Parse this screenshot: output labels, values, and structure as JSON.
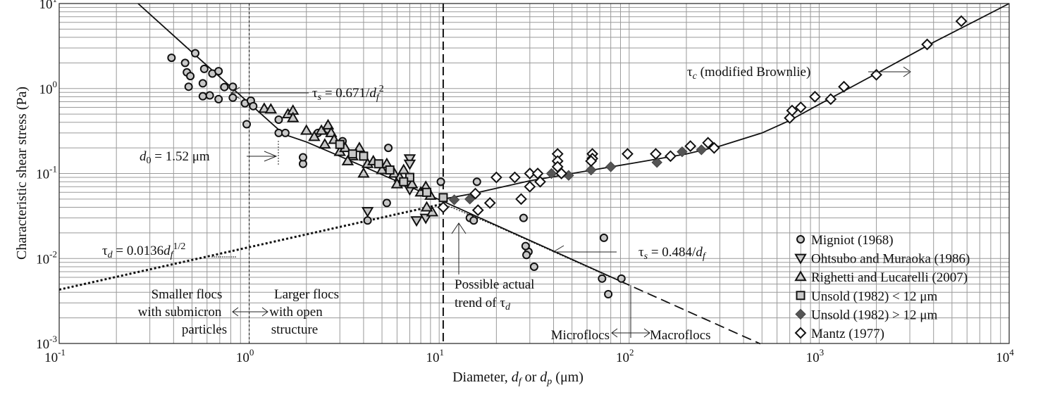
{
  "chart_data": {
    "type": "scatter",
    "title": "",
    "xlabel": {
      "pre": "Diameter, ",
      "d1": "d",
      "s1": "f",
      "mid": " or ",
      "d2": "d",
      "s2": "p",
      "post": " (μm)"
    },
    "ylabel": "Characteristic shear stress (Pa)",
    "xscale": "log",
    "yscale": "log",
    "xlim": [
      0.1,
      10000
    ],
    "ylim": [
      0.001,
      10
    ],
    "x_tick_exponents": [
      "-1",
      "0",
      "1",
      "2",
      "3",
      "4"
    ],
    "y_tick_exponents": [
      "1",
      "0",
      "-1",
      "-2",
      "-3"
    ],
    "tick_base": "10",
    "grid": true,
    "legend_position": "bottom-right",
    "series": [
      {
        "name": "Migniot (1968)",
        "marker": "circle",
        "color": "#c8c8c8",
        "points": [
          [
            0.39,
            2.3
          ],
          [
            0.46,
            2.0
          ],
          [
            0.52,
            2.6
          ],
          [
            0.47,
            1.55
          ],
          [
            0.49,
            1.4
          ],
          [
            0.58,
            1.7
          ],
          [
            0.64,
            1.5
          ],
          [
            0.57,
            1.15
          ],
          [
            0.48,
            1.05
          ],
          [
            0.69,
            1.6
          ],
          [
            0.74,
            1.04
          ],
          [
            0.82,
            1.05
          ],
          [
            0.69,
            0.75
          ],
          [
            0.62,
            0.83
          ],
          [
            0.57,
            0.81
          ],
          [
            0.82,
            0.78
          ],
          [
            0.95,
            0.67
          ],
          [
            1.02,
            0.72
          ],
          [
            1.05,
            0.62
          ],
          [
            0.97,
            0.38
          ],
          [
            1.43,
            0.43
          ],
          [
            1.43,
            0.3
          ],
          [
            1.55,
            0.3
          ],
          [
            1.92,
            0.13
          ],
          [
            1.92,
            0.155
          ],
          [
            2.3,
            0.3
          ],
          [
            2.6,
            0.33
          ],
          [
            3.1,
            0.24
          ],
          [
            4.2,
            0.028
          ],
          [
            5.3,
            0.045
          ],
          [
            5.4,
            0.2
          ],
          [
            10.2,
            0.08
          ],
          [
            15.8,
            0.08
          ],
          [
            14.5,
            0.03
          ],
          [
            15.2,
            0.028
          ],
          [
            27.8,
            0.03
          ],
          [
            29.5,
            0.012
          ],
          [
            28.8,
            0.011
          ],
          [
            28.5,
            0.014
          ],
          [
            31.6,
            0.008
          ],
          [
            73.6,
            0.0175
          ],
          [
            72,
            0.0058
          ],
          [
            77.6,
            0.0038
          ],
          [
            91,
            0.0058
          ]
        ]
      },
      {
        "name": "Ohtsubo and Muraoka (1986)",
        "marker": "triangle-down",
        "color": "#c8c8c8",
        "points": [
          [
            7.0,
            0.15
          ],
          [
            7.0,
            0.13
          ],
          [
            4.2,
            0.036
          ],
          [
            7.6,
            0.028
          ],
          [
            8.5,
            0.03
          ],
          [
            6.3,
            0.08
          ],
          [
            7.0,
            0.065
          ]
        ]
      },
      {
        "name": "Righetti and Lucarelli (2007)",
        "marker": "triangle-up",
        "color": "#c8c8c8",
        "points": [
          [
            1.2,
            0.58
          ],
          [
            1.3,
            0.57
          ],
          [
            1.6,
            0.5
          ],
          [
            1.7,
            0.55
          ],
          [
            1.7,
            0.45
          ],
          [
            2.0,
            0.32
          ],
          [
            2.4,
            0.32
          ],
          [
            2.6,
            0.37
          ],
          [
            2.7,
            0.3
          ],
          [
            2.8,
            0.25
          ],
          [
            2.2,
            0.27
          ],
          [
            2.5,
            0.22
          ],
          [
            3.0,
            0.18
          ],
          [
            3.2,
            0.2
          ],
          [
            3.5,
            0.16
          ],
          [
            3.8,
            0.2
          ],
          [
            4.2,
            0.13
          ],
          [
            4.5,
            0.14
          ],
          [
            5.0,
            0.11
          ],
          [
            5.3,
            0.13
          ],
          [
            5.8,
            0.1
          ],
          [
            6.2,
            0.09
          ],
          [
            6.5,
            0.11
          ],
          [
            7.2,
            0.075
          ],
          [
            8.0,
            0.06
          ],
          [
            8.5,
            0.07
          ],
          [
            9.0,
            0.055
          ],
          [
            9.2,
            0.035
          ],
          [
            8.6,
            0.04
          ],
          [
            3.3,
            0.14
          ],
          [
            4.0,
            0.1
          ],
          [
            6.0,
            0.075
          ]
        ]
      },
      {
        "name": "Unsold (1982) < 12 μm",
        "marker": "square",
        "color": "#c8c8c8",
        "points": [
          [
            3.0,
            0.22
          ],
          [
            3.5,
            0.17
          ],
          [
            4.0,
            0.16
          ],
          [
            4.8,
            0.13
          ],
          [
            5.5,
            0.11
          ],
          [
            7.0,
            0.09
          ],
          [
            8.6,
            0.06
          ],
          [
            10.5,
            0.052
          ],
          [
            6.5,
            0.08
          ]
        ]
      },
      {
        "name": "Unsold (1982) > 12 μm",
        "marker": "diamond-filled",
        "color": "#555555",
        "points": [
          [
            12,
            0.049
          ],
          [
            14.5,
            0.05
          ],
          [
            39,
            0.1
          ],
          [
            48,
            0.095
          ],
          [
            63,
            0.11
          ],
          [
            80,
            0.12
          ],
          [
            140,
            0.135
          ],
          [
            190,
            0.18
          ],
          [
            240,
            0.19
          ]
        ]
      },
      {
        "name": "Mantz (1977)",
        "marker": "diamond-open",
        "color": "#ffffff",
        "points": [
          [
            10.5,
            0.04
          ],
          [
            15.5,
            0.058
          ],
          [
            16,
            0.037
          ],
          [
            20,
            0.09
          ],
          [
            18.5,
            0.045
          ],
          [
            25,
            0.09
          ],
          [
            27,
            0.05
          ],
          [
            30,
            0.1
          ],
          [
            33,
            0.1
          ],
          [
            30,
            0.07
          ],
          [
            34,
            0.08
          ],
          [
            42,
            0.17
          ],
          [
            42,
            0.14
          ],
          [
            42,
            0.12
          ],
          [
            44,
            0.1
          ],
          [
            64,
            0.17
          ],
          [
            64,
            0.15
          ],
          [
            63,
            0.14
          ],
          [
            98,
            0.17
          ],
          [
            138,
            0.17
          ],
          [
            165,
            0.16
          ],
          [
            210,
            0.21
          ],
          [
            260,
            0.23
          ],
          [
            280,
            0.2
          ],
          [
            700,
            0.45
          ],
          [
            720,
            0.55
          ],
          [
            800,
            0.6
          ],
          [
            950,
            0.8
          ],
          [
            1150,
            0.75
          ],
          [
            1350,
            1.05
          ],
          [
            2000,
            1.45
          ],
          [
            3700,
            3.3
          ],
          [
            5600,
            6.2
          ]
        ]
      }
    ],
    "curves": [
      {
        "name": "tau-s-small",
        "style": "solid",
        "points": [
          [
            0.26,
            10
          ],
          [
            0.5,
            2.68
          ],
          [
            1.0,
            0.671
          ],
          [
            1.52,
            0.29
          ],
          [
            2,
            0.235
          ],
          [
            3,
            0.16
          ],
          [
            5,
            0.097
          ],
          [
            10.5,
            0.047
          ]
        ]
      },
      {
        "name": "tau-s-large",
        "style": "solid",
        "points": [
          [
            10.5,
            0.047
          ],
          [
            90,
            0.0054
          ]
        ]
      },
      {
        "name": "tau-s-extension",
        "style": "dashed",
        "points": [
          [
            90,
            0.0054
          ],
          [
            490,
            0.00099
          ]
        ]
      },
      {
        "name": "tau-c",
        "style": "solid",
        "points": [
          [
            10.5,
            0.05
          ],
          [
            15,
            0.058
          ],
          [
            20,
            0.067
          ],
          [
            30,
            0.082
          ],
          [
            50,
            0.1
          ],
          [
            100,
            0.13
          ],
          [
            200,
            0.17
          ],
          [
            300,
            0.21
          ],
          [
            500,
            0.3
          ],
          [
            700,
            0.42
          ],
          [
            1000,
            0.65
          ],
          [
            2000,
            1.5
          ],
          [
            4000,
            3.5
          ],
          [
            10000,
            10
          ]
        ]
      },
      {
        "name": "tau-d",
        "style": "dotted-thick",
        "points": [
          [
            0.1,
            0.0043
          ],
          [
            10.5,
            0.044
          ]
        ]
      },
      {
        "name": "possible-trend",
        "style": "dotted-thin",
        "points": [
          [
            10.5,
            0.044
          ],
          [
            20,
            0.024
          ],
          [
            40,
            0.012
          ],
          [
            80,
            0.006
          ]
        ]
      }
    ],
    "vertical_lines": [
      {
        "x": 10.5,
        "style": "dashed-thick"
      },
      {
        "x": 1.0,
        "style": "dotted-thin"
      }
    ],
    "annotations": {
      "tau_s1": {
        "sym": "τ",
        "sub": "s",
        "eq": " = 0.671/",
        "d": "d",
        "dsub": "f",
        "sup": "2"
      },
      "tau_c": {
        "sym": "τ",
        "sub": "c",
        "rest": " (modified Brownlie)"
      },
      "d0": {
        "d": "d",
        "sub": "0",
        "rest": " = 1.52 μm"
      },
      "tau_d": {
        "sym": "τ",
        "sub": "d",
        "eq": " = 0.0136",
        "d": "d",
        "dsub": "f",
        "sup": "1/2"
      },
      "tau_s2": {
        "sym": "τ",
        "sub": "s",
        "eq": " = 0.484/",
        "d": "d",
        "dsub": "f"
      },
      "trend": {
        "line1": "Possible actual",
        "line2": "trend of τ",
        "sub": "d"
      },
      "smaller": [
        "Smaller flocs",
        "with submicron",
        "particles"
      ],
      "larger": [
        "Larger flocs",
        "with open",
        "structure"
      ],
      "micro": "Microflocs",
      "macro": "Macroflocs"
    }
  }
}
